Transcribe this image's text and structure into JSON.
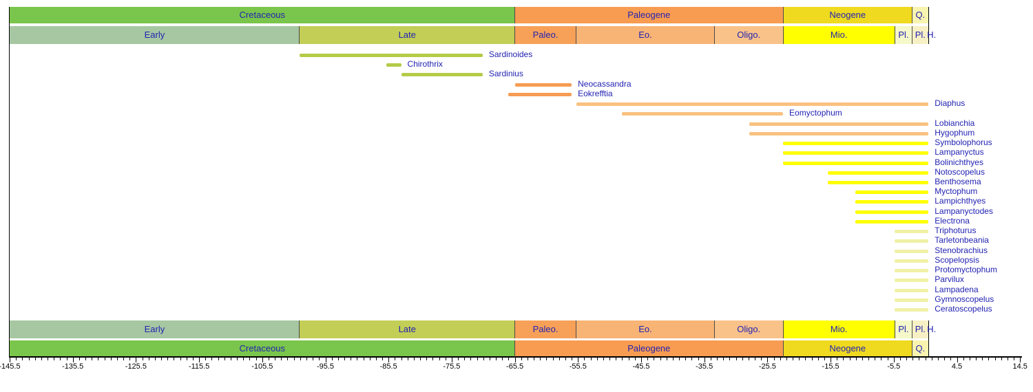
{
  "colors": {
    "background": "#FFFFFF",
    "frame": "#000000",
    "axis": "#000000",
    "separator": "#4A4A4A",
    "header_label_text": "#2222B2",
    "taxon_label_text": "#2222B2",
    "axis_label_text": "#000000"
  },
  "chart_data": {
    "type": "bar",
    "subtype": "stratigraphic-range-chart",
    "title": "",
    "xlabel": "",
    "ylabel": "",
    "x_domain": [
      -145.5,
      14.5
    ],
    "range_end": 0,
    "grid": false,
    "legend": false,
    "x_axis": {
      "position": "bottom",
      "major_tick_step": 10,
      "minor_tick_step": 1,
      "major_tick_labels": [
        "-145.5",
        "-135.5",
        "-125.5",
        "-115.5",
        "-105.5",
        "-95.5",
        "-85.5",
        "-75.5",
        "-65.5",
        "-55.5",
        "-45.5",
        "-35.5",
        "-25.5",
        "-15.5",
        "-5.5",
        "4.5",
        "14.5"
      ]
    },
    "header_rows_mirrored_top_and_bottom": true,
    "periods": [
      {
        "id": "cretaceous",
        "label": "Cretaceous",
        "start": -145.5,
        "end": -65.5,
        "color": "#7AC54B"
      },
      {
        "id": "paleogene",
        "label": "Paleogene",
        "start": -65.5,
        "end": -23.03,
        "color": "#F89C51"
      },
      {
        "id": "neogene",
        "label": "Neogene",
        "start": -23.03,
        "end": -2.59,
        "color": "#EFDA1F"
      },
      {
        "id": "quaternary",
        "label": "Q.",
        "start": -2.59,
        "end": 0,
        "color": "#F8F4B0"
      }
    ],
    "epochs": [
      {
        "id": "early-cretaceous",
        "label": "Early",
        "start": -145.5,
        "end": -99.6,
        "color": "#A6C7A2"
      },
      {
        "id": "late-cretaceous",
        "label": "Late",
        "start": -99.6,
        "end": -65.5,
        "color": "#C2CE55"
      },
      {
        "id": "paleocene",
        "label": "Paleo.",
        "start": -65.5,
        "end": -55.8,
        "color": "#F7A158"
      },
      {
        "id": "eocene",
        "label": "Eo.",
        "start": -55.8,
        "end": -33.9,
        "color": "#F8B475"
      },
      {
        "id": "oligocene",
        "label": "Oligo.",
        "start": -33.9,
        "end": -23.03,
        "color": "#F9C289"
      },
      {
        "id": "miocene",
        "label": "Mio.",
        "start": -23.03,
        "end": -5.33,
        "color": "#FFFF00"
      },
      {
        "id": "pliocene",
        "label": "Pl.",
        "start": -5.33,
        "end": -2.59,
        "color": "#F5F9CA"
      },
      {
        "id": "pleistocene",
        "label": "Pl.",
        "start": -2.59,
        "end": -0.01,
        "color": "#F7F0C5"
      },
      {
        "id": "holocene",
        "label": "H.",
        "start": -0.01,
        "end": 0,
        "color": "#FFFFFF",
        "label_outside": true
      }
    ],
    "taxa": [
      {
        "name": "Sardinoides",
        "start": -99.6,
        "end": -70.6,
        "color": "#B4CB48"
      },
      {
        "name": "Chirothrix",
        "start": -85.8,
        "end": -83.5,
        "color": "#B4CB48"
      },
      {
        "name": "Sardinius",
        "start": -83.5,
        "end": -70.6,
        "color": "#B4CB48"
      },
      {
        "name": "Neocassandra",
        "start": -65.5,
        "end": -56.5,
        "color": "#F79C52"
      },
      {
        "name": "Eokrefftia",
        "start": -66.5,
        "end": -56.5,
        "color": "#F79C52"
      },
      {
        "name": "Diaphus",
        "start": -55.8,
        "end": 0,
        "color": "#F9C180"
      },
      {
        "name": "Eomyctophum",
        "start": -48.6,
        "end": -23.03,
        "color": "#F9C180"
      },
      {
        "name": "Lobianchia",
        "start": -28.4,
        "end": 0,
        "color": "#F9C180"
      },
      {
        "name": "Hygophum",
        "start": -28.4,
        "end": 0,
        "color": "#F9C180"
      },
      {
        "name": "Symbolophorus",
        "start": -23.03,
        "end": 0,
        "color": "#FFFF00"
      },
      {
        "name": "Lampanyctus",
        "start": -23.03,
        "end": 0,
        "color": "#FFFF00"
      },
      {
        "name": "Bolinichthyes",
        "start": -23.03,
        "end": 0,
        "color": "#FFFF00"
      },
      {
        "name": "Notoscopelus",
        "start": -15.97,
        "end": 0,
        "color": "#FFFF00"
      },
      {
        "name": "Benthosema",
        "start": -15.97,
        "end": 0,
        "color": "#FFFF00"
      },
      {
        "name": "Myctophum",
        "start": -11.6,
        "end": 0,
        "color": "#FFFF00"
      },
      {
        "name": "Lampichthyes",
        "start": -11.6,
        "end": 0,
        "color": "#FFFF00"
      },
      {
        "name": "Lampanyctodes",
        "start": -11.6,
        "end": 0,
        "color": "#FFFF00"
      },
      {
        "name": "Electrona",
        "start": -11.6,
        "end": 0,
        "color": "#FFFF00"
      },
      {
        "name": "Triphoturus",
        "start": -5.33,
        "end": 0,
        "color": "#F0F1A6"
      },
      {
        "name": "Tarletonbeania",
        "start": -5.33,
        "end": 0,
        "color": "#F0F1A6"
      },
      {
        "name": "Stenobrachius",
        "start": -5.33,
        "end": 0,
        "color": "#F0F1A6"
      },
      {
        "name": "Scopelopsis",
        "start": -5.33,
        "end": 0,
        "color": "#F0F1A6"
      },
      {
        "name": "Protomyctophum",
        "start": -5.33,
        "end": 0,
        "color": "#F0F1A6"
      },
      {
        "name": "Parvilux",
        "start": -5.33,
        "end": 0,
        "color": "#F0F1A6"
      },
      {
        "name": "Lampadena",
        "start": -5.33,
        "end": 0,
        "color": "#F0F1A6"
      },
      {
        "name": "Gymnoscopelus",
        "start": -5.33,
        "end": 0,
        "color": "#F0F1A6"
      },
      {
        "name": "Ceratoscopelus",
        "start": -5.33,
        "end": 0,
        "color": "#F0F1A6"
      }
    ]
  }
}
